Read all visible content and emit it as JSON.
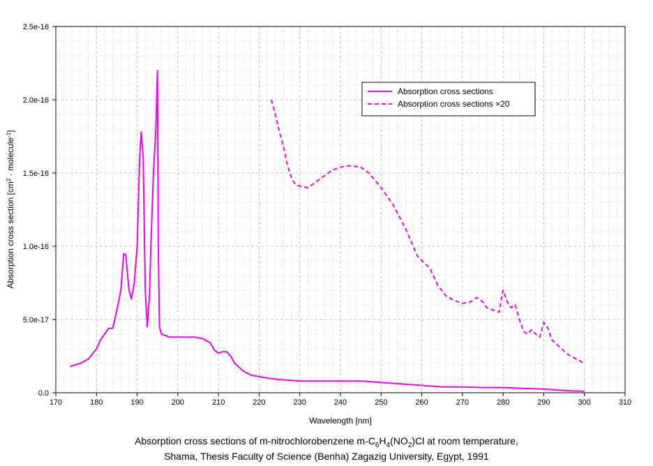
{
  "chart_data": {
    "type": "line",
    "xlabel": "Wavelength [nm]",
    "ylabel_parts": [
      "Absorption cross section [cm",
      "2",
      " · molecule",
      "-1",
      "]"
    ],
    "xlim": [
      170,
      310
    ],
    "ylim": [
      0,
      2.5e-16
    ],
    "x_ticks": [
      170,
      180,
      190,
      200,
      210,
      220,
      230,
      240,
      250,
      260,
      270,
      280,
      290,
      300,
      310
    ],
    "y_ticks": [
      0,
      5e-17,
      1e-16,
      1.5e-16,
      2e-16,
      2.5e-16
    ],
    "y_tick_labels": [
      "0.0",
      "5.0e-17",
      "1.0e-16",
      "1.5e-16",
      "2.0e-16",
      "2.5e-16"
    ],
    "grid": true,
    "legend_position": "top-right",
    "colors": {
      "series": "#ee00ee",
      "grid": "#b8b8b8"
    },
    "series": [
      {
        "name": "Absorption cross sections",
        "style": "solid",
        "x": [
          173.5,
          176,
          178,
          180,
          181,
          182,
          183,
          184,
          185,
          186,
          186.7,
          187.2,
          188,
          188.6,
          189.3,
          190,
          190.6,
          191,
          191.5,
          192,
          192.5,
          193,
          193.5,
          194,
          194.6,
          195,
          195.2,
          195.5,
          196,
          198,
          200,
          204,
          206,
          208,
          209,
          210,
          211,
          212,
          213,
          214,
          216,
          218,
          220,
          222,
          225,
          230,
          240,
          245,
          250,
          255,
          260,
          265,
          270,
          275,
          280,
          285,
          290,
          295,
          300
        ],
        "y": [
          1.8e-17,
          2e-17,
          2.3e-17,
          3e-17,
          3.6e-17,
          4e-17,
          4.4e-17,
          4.4e-17,
          5.6e-17,
          7e-17,
          9.5e-17,
          9.4e-17,
          7e-17,
          6.4e-17,
          7.5e-17,
          1e-16,
          1.6e-16,
          1.78e-16,
          1.6e-16,
          7e-17,
          4.5e-17,
          6.5e-17,
          1.1e-16,
          1.5e-16,
          1.8e-16,
          2.2e-16,
          1e-16,
          4.5e-17,
          4e-17,
          3.8e-17,
          3.8e-17,
          3.8e-17,
          3.7e-17,
          3.4e-17,
          2.9e-17,
          2.7e-17,
          2.8e-17,
          2.8e-17,
          2.5e-17,
          2e-17,
          1.5e-17,
          1.2e-17,
          1.1e-17,
          1e-17,
          9e-18,
          8e-18,
          8e-18,
          8e-18,
          7e-18,
          6e-18,
          5e-18,
          4e-18,
          4e-18,
          3.5e-18,
          3.5e-18,
          3e-18,
          2.5e-18,
          1.5e-18,
          1e-18
        ]
      },
      {
        "name": "Absorption cross sections ×20",
        "style": "dashed",
        "x": [
          223,
          224,
          225,
          226,
          227,
          228,
          229,
          230,
          232,
          234,
          236,
          238,
          240,
          242,
          245,
          247,
          250,
          253,
          256,
          259,
          262,
          264,
          266,
          268,
          270,
          272,
          273.5,
          275,
          276,
          278,
          279,
          280,
          281,
          282,
          283,
          284,
          285,
          286,
          287,
          288,
          289,
          290,
          291,
          292,
          294,
          296,
          298,
          300
        ],
        "y": [
          2e-16,
          1.9e-16,
          1.78e-16,
          1.68e-16,
          1.55e-16,
          1.46e-16,
          1.42e-16,
          1.41e-16,
          1.4e-16,
          1.44e-16,
          1.48e-16,
          1.52e-16,
          1.54e-16,
          1.55e-16,
          1.54e-16,
          1.5e-16,
          1.4e-16,
          1.28e-16,
          1.12e-16,
          9.3e-17,
          8.5e-17,
          7.3e-17,
          6.6e-17,
          6.3e-17,
          6.1e-17,
          6.2e-17,
          6.5e-17,
          6.2e-17,
          5.8e-17,
          5.6e-17,
          5.5e-17,
          7e-17,
          6.2e-17,
          5.8e-17,
          6e-17,
          5e-17,
          4.2e-17,
          4e-17,
          4.3e-17,
          4e-17,
          3.8e-17,
          4.8e-17,
          4.4e-17,
          3.6e-17,
          3.1e-17,
          2.6e-17,
          2.3e-17,
          2e-17
        ]
      }
    ]
  },
  "caption": {
    "line1_parts": [
      "Absorption cross sections of m-nitrochlorobenzene m-C",
      "6",
      "H",
      "4",
      "(NO",
      "2",
      ")Cl at room temperature,"
    ],
    "line2": "Shama, Thesis Faculty of Science (Benha) Zagazig University, Egypt, 1991"
  }
}
